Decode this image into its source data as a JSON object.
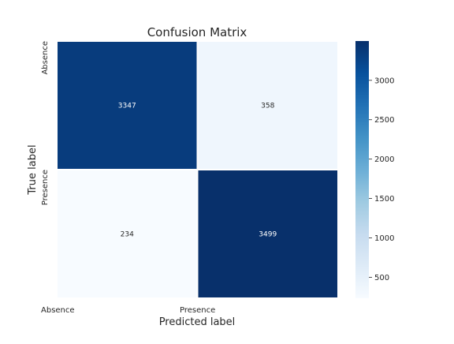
{
  "chart_data": {
    "type": "heatmap",
    "title": "Confusion Matrix",
    "xlabel": "Predicted label",
    "ylabel": "True label",
    "x_categories": [
      "Absence",
      "Presence"
    ],
    "y_categories": [
      "Absence",
      "Presence"
    ],
    "values": [
      [
        3347,
        358
      ],
      [
        234,
        3499
      ]
    ],
    "colormap": "Blues",
    "color_low": "#f7fbff",
    "color_high": "#08306b",
    "colorbar": {
      "min": 234,
      "max": 3499,
      "ticks": [
        500,
        1000,
        1500,
        2000,
        2500,
        3000
      ],
      "tick_labels": [
        "500",
        "1000",
        "1500",
        "2000",
        "2500",
        "3000"
      ]
    }
  }
}
